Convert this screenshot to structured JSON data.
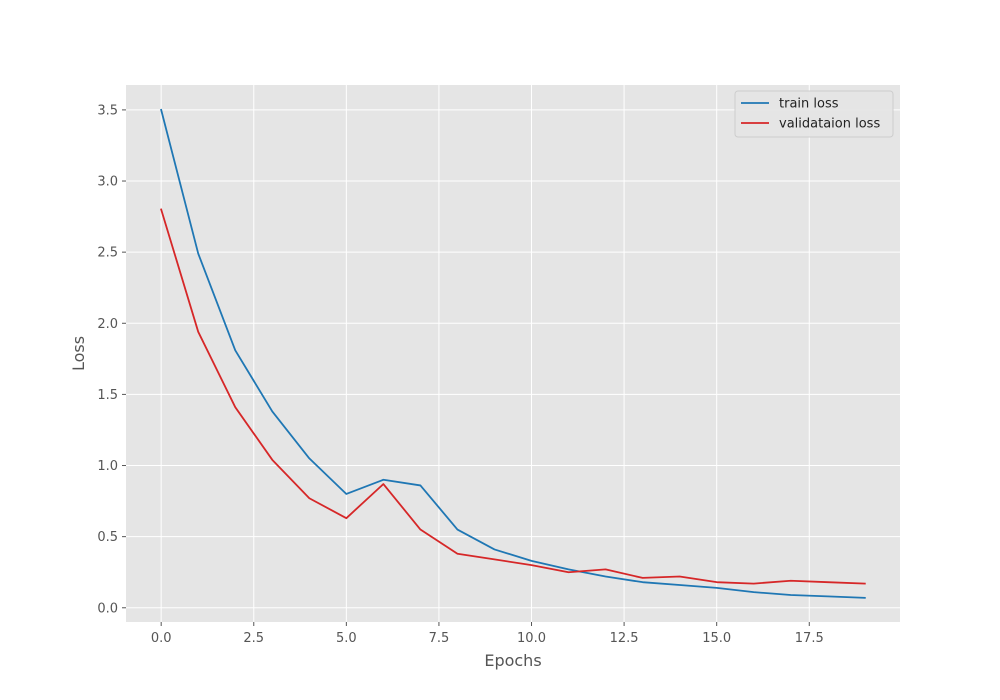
{
  "chart_data": {
    "type": "line",
    "xlabel": "Epochs",
    "ylabel": "Loss",
    "xlim": [
      -0.95,
      19.95
    ],
    "ylim": [
      -0.1,
      3.675
    ],
    "xticks": [
      0.0,
      2.5,
      5.0,
      7.5,
      10.0,
      12.5,
      15.0,
      17.5
    ],
    "xtick_labels": [
      "0.0",
      "2.5",
      "5.0",
      "7.5",
      "10.0",
      "12.5",
      "15.0",
      "17.5"
    ],
    "yticks": [
      0.0,
      0.5,
      1.0,
      1.5,
      2.0,
      2.5,
      3.0,
      3.5
    ],
    "ytick_labels": [
      "0.0",
      "0.5",
      "1.0",
      "1.5",
      "2.0",
      "2.5",
      "3.0",
      "3.5"
    ],
    "grid": true,
    "legend_position": "top-right",
    "background_color": "#e5e5e5",
    "grid_color": "#ffffff",
    "x": [
      0,
      1,
      2,
      3,
      4,
      5,
      6,
      7,
      8,
      9,
      10,
      11,
      12,
      13,
      14,
      15,
      16,
      17,
      18,
      19
    ],
    "series": [
      {
        "name": "train loss",
        "color": "#1f77b4",
        "values": [
          3.5,
          2.49,
          1.81,
          1.38,
          1.05,
          0.8,
          0.9,
          0.86,
          0.55,
          0.41,
          0.33,
          0.27,
          0.22,
          0.18,
          0.16,
          0.14,
          0.11,
          0.09,
          0.08,
          0.07
        ]
      },
      {
        "name": "validataion loss",
        "color": "#d62728",
        "values": [
          2.8,
          1.94,
          1.41,
          1.04,
          0.77,
          0.63,
          0.87,
          0.55,
          0.38,
          0.34,
          0.3,
          0.25,
          0.27,
          0.21,
          0.22,
          0.18,
          0.17,
          0.19,
          0.18,
          0.17
        ]
      }
    ]
  }
}
